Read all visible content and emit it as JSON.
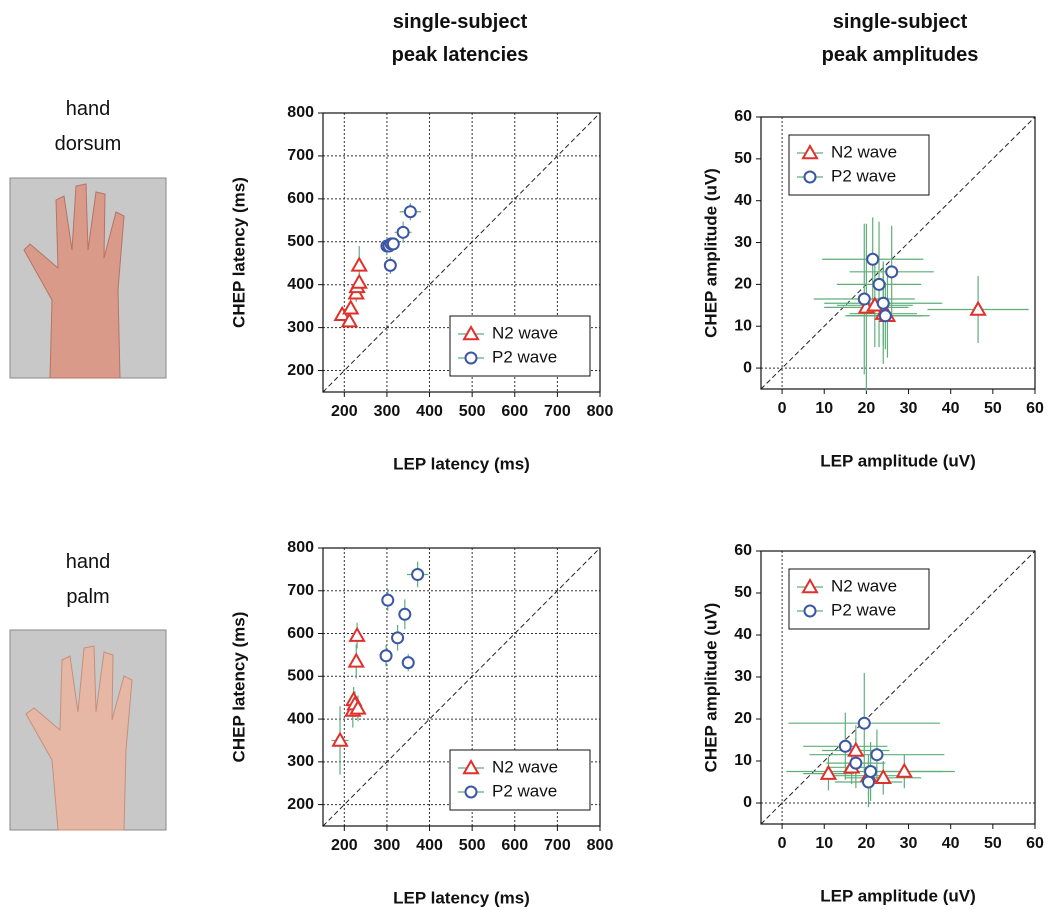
{
  "column_titles": [
    "single-subject peak latencies",
    "single-subject peak amplitudes"
  ],
  "row_labels": [
    "hand dorsum",
    "hand palm"
  ],
  "chart_data": [
    {
      "type": "scatter",
      "xlabel": "LEP latency (ms)",
      "ylabel": "CHEP latency (ms)",
      "xlim": [
        150,
        800
      ],
      "ylim": [
        150,
        800
      ],
      "xticks": [
        200,
        300,
        400,
        500,
        600,
        700,
        800
      ],
      "yticks": [
        200,
        300,
        400,
        500,
        600,
        700,
        800
      ],
      "grid": true,
      "identity_line": true,
      "legend": "lower right",
      "series": [
        {
          "name": "N2 wave",
          "color": "#e0302c",
          "marker": "triangle",
          "x": [
            195,
            212,
            215,
            228,
            230,
            235,
            235
          ],
          "y": [
            330,
            315,
            345,
            380,
            395,
            405,
            445
          ],
          "xerr": [
            12,
            10,
            10,
            10,
            10,
            10,
            8
          ],
          "yerr": [
            15,
            15,
            15,
            20,
            15,
            15,
            45
          ]
        },
        {
          "name": "P2 wave",
          "color": "#3a56a5",
          "marker": "circle",
          "x": [
            300,
            305,
            310,
            315,
            308,
            338,
            355
          ],
          "y": [
            490,
            490,
            495,
            495,
            445,
            522,
            570
          ],
          "xerr": [
            12,
            10,
            12,
            10,
            10,
            20,
            25
          ],
          "yerr": [
            20,
            15,
            15,
            15,
            20,
            25,
            20
          ]
        }
      ]
    },
    {
      "type": "scatter",
      "xlabel": "LEP amplitude (uV)",
      "ylabel": "CHEP amplitude (uV)",
      "xlim": [
        -5,
        60
      ],
      "ylim": [
        -5,
        60
      ],
      "xticks": [
        0,
        10,
        20,
        30,
        40,
        50,
        60
      ],
      "yticks": [
        0,
        10,
        20,
        30,
        40,
        50,
        60
      ],
      "grid": false,
      "identity_line": true,
      "legend": "upper left",
      "series": [
        {
          "name": "N2 wave",
          "color": "#e0302c",
          "marker": "triangle",
          "x": [
            20,
            22,
            24,
            25,
            46.5
          ],
          "y": [
            14.5,
            15,
            13,
            12.5,
            14
          ],
          "xerr": [
            10,
            9,
            8,
            10,
            12
          ],
          "yerr": [
            20,
            10,
            12,
            10,
            8
          ]
        },
        {
          "name": "P2 wave",
          "color": "#3a56a5",
          "marker": "circle",
          "x": [
            19.5,
            21.5,
            23,
            24,
            24.5,
            26
          ],
          "y": [
            16.5,
            26,
            20,
            15.5,
            12.5,
            23
          ],
          "xerr": [
            12,
            12,
            10,
            14,
            9,
            10
          ],
          "yerr": [
            18,
            10,
            15,
            10,
            8,
            11
          ]
        }
      ]
    },
    {
      "type": "scatter",
      "xlabel": "LEP latency (ms)",
      "ylabel": "CHEP latency (ms)",
      "xlim": [
        150,
        800
      ],
      "ylim": [
        150,
        800
      ],
      "xticks": [
        200,
        300,
        400,
        500,
        600,
        700,
        800
      ],
      "yticks": [
        200,
        300,
        400,
        500,
        600,
        700,
        800
      ],
      "grid": true,
      "identity_line": true,
      "legend": "lower right",
      "series": [
        {
          "name": "N2 wave",
          "color": "#e0302c",
          "marker": "triangle",
          "x": [
            190,
            220,
            222,
            225,
            228,
            230,
            232
          ],
          "y": [
            350,
            420,
            445,
            435,
            535,
            595,
            425
          ],
          "xerr": [
            20,
            12,
            10,
            10,
            10,
            10,
            12
          ],
          "yerr": [
            80,
            40,
            30,
            30,
            40,
            30,
            30
          ]
        },
        {
          "name": "P2 wave",
          "color": "#3a56a5",
          "marker": "circle",
          "x": [
            298,
            302,
            325,
            342,
            350,
            372
          ],
          "y": [
            548,
            678,
            590,
            645,
            532,
            738
          ],
          "xerr": [
            15,
            12,
            15,
            15,
            15,
            25
          ],
          "yerr": [
            25,
            25,
            30,
            35,
            20,
            30
          ]
        }
      ]
    },
    {
      "type": "scatter",
      "xlabel": "LEP amplitude (uV)",
      "ylabel": "CHEP amplitude (uV)",
      "xlim": [
        -5,
        60
      ],
      "ylim": [
        -5,
        60
      ],
      "xticks": [
        0,
        10,
        20,
        30,
        40,
        50,
        60
      ],
      "yticks": [
        0,
        10,
        20,
        30,
        40,
        50,
        60
      ],
      "grid": false,
      "identity_line": true,
      "legend": "upper left",
      "series": [
        {
          "name": "N2 wave",
          "color": "#e0302c",
          "marker": "triangle",
          "x": [
            11,
            16.5,
            17.5,
            20.5,
            24,
            29
          ],
          "y": [
            7,
            8.5,
            12.5,
            6.5,
            6,
            7.5
          ],
          "xerr": [
            6,
            6,
            8,
            10,
            9,
            9
          ],
          "yerr": [
            4,
            4,
            6,
            5,
            4,
            4
          ]
        },
        {
          "name": "P2 wave",
          "color": "#3a56a5",
          "marker": "circle",
          "x": [
            15,
            17.5,
            19.5,
            20.5,
            21,
            22.5
          ],
          "y": [
            13.5,
            9.5,
            19,
            5,
            7.5,
            11.5
          ],
          "xerr": [
            10,
            7,
            18,
            8,
            20,
            16
          ],
          "yerr": [
            8,
            6,
            12,
            6,
            7,
            6
          ]
        }
      ]
    }
  ]
}
